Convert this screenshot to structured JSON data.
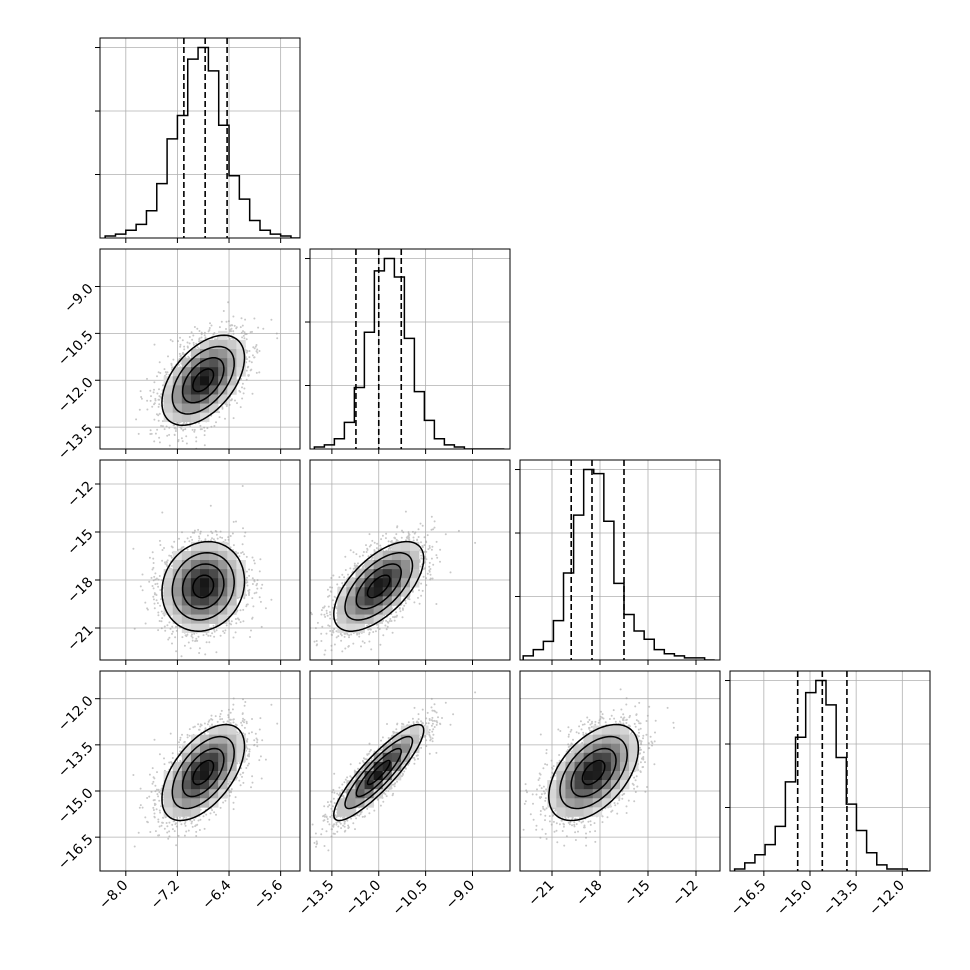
{
  "chart_data": {
    "type": "corner",
    "title": "",
    "grid": true,
    "parameters": [
      {
        "range": [
          -8.4,
          -5.3
        ],
        "ticks": [
          -8.0,
          -7.2,
          -6.4,
          -5.6
        ],
        "tick_labels": [
          "−8.0",
          "−7.2",
          "−6.4",
          "−5.6"
        ],
        "histogram": {
          "bin_start": -8.32,
          "bin_width": 0.16,
          "counts": [
            1,
            2,
            4,
            7,
            14,
            28,
            51,
            63,
            92,
            98,
            86,
            58,
            32,
            20,
            9,
            4,
            2,
            1,
            0
          ]
        },
        "quantiles": [
          -7.1,
          -6.77,
          -6.43
        ]
      },
      {
        "range": [
          -14.2,
          -7.8
        ],
        "ticks": [
          -13.5,
          -12.0,
          -10.5,
          -9.0
        ],
        "tick_labels": [
          "−13.5",
          "−12.0",
          "−10.5",
          "−9.0"
        ],
        "histogram": {
          "bin_start": -14.06,
          "bin_width": 0.32,
          "counts": [
            1,
            2,
            5,
            13,
            30,
            57,
            87,
            93,
            84,
            54,
            28,
            14,
            5,
            2,
            1,
            0,
            0,
            0,
            0
          ]
        },
        "quantiles": [
          -12.73,
          -12.0,
          -11.28
        ]
      },
      {
        "range": [
          -23.0,
          -10.5
        ],
        "ticks": [
          -21,
          -18,
          -15,
          -12
        ],
        "tick_labels": [
          "−21",
          "−18",
          "−15",
          "−12"
        ],
        "histogram": {
          "bin_start": -22.8,
          "bin_width": 0.63,
          "counts": [
            2,
            5,
            9,
            19,
            42,
            70,
            92,
            90,
            67,
            37,
            22,
            14,
            10,
            5,
            3,
            2,
            1,
            1,
            0
          ]
        },
        "quantiles": [
          -19.8,
          -18.5,
          -16.5
        ]
      },
      {
        "range": [
          -17.6,
          -11.1
        ],
        "ticks": [
          -16.5,
          -15.0,
          -13.5,
          -12.0
        ],
        "tick_labels": [
          "−16.5",
          "−15.0",
          "−13.5",
          "−12.0"
        ],
        "histogram": {
          "bin_start": -17.45,
          "bin_width": 0.33,
          "counts": [
            1,
            4,
            8,
            13,
            22,
            44,
            66,
            88,
            94,
            82,
            56,
            33,
            20,
            9,
            3,
            1,
            1,
            0,
            0
          ]
        },
        "quantiles": [
          -15.4,
          -14.6,
          -13.8
        ]
      }
    ],
    "distribution": {
      "means": [
        -6.8,
        -12.0,
        -18.4,
        -14.4
      ],
      "sds": [
        0.32,
        0.72,
        1.4,
        0.78
      ],
      "correlations": [
        [
          1.0,
          0.5,
          0.12,
          0.55
        ],
        [
          0.5,
          1.0,
          0.62,
          0.88
        ],
        [
          0.12,
          0.62,
          1.0,
          0.5
        ],
        [
          0.55,
          0.88,
          0.5,
          1.0
        ]
      ]
    },
    "contour_levels_sigma": [
      0.5,
      1.0,
      1.5,
      2.0
    ],
    "colors": {
      "line": "#000000",
      "grid": "#b0b0b0",
      "scatter": "#9a9a9a"
    }
  }
}
